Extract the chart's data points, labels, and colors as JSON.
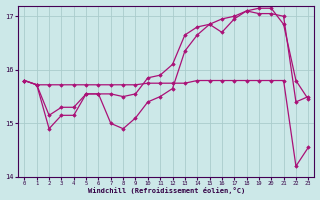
{
  "background_color": "#cce8e8",
  "grid_color": "#aacccc",
  "line_color": "#aa1177",
  "xlim": [
    -0.5,
    23.5
  ],
  "ylim": [
    14.0,
    17.2
  ],
  "yticks": [
    14,
    15,
    16,
    17
  ],
  "xticks": [
    0,
    1,
    2,
    3,
    4,
    5,
    6,
    7,
    8,
    9,
    10,
    11,
    12,
    13,
    14,
    15,
    16,
    17,
    18,
    19,
    20,
    21,
    22,
    23
  ],
  "xlabel": "Windchill (Refroidissement éolien,°C)",
  "series": [
    [
      15.8,
      15.72,
      15.72,
      15.72,
      15.72,
      15.72,
      15.72,
      15.72,
      15.72,
      15.72,
      15.75,
      15.75,
      15.75,
      15.75,
      15.8,
      15.8,
      15.8,
      15.8,
      15.8,
      15.8,
      15.8,
      15.8,
      14.2,
      14.55
    ],
    [
      15.8,
      15.72,
      14.9,
      15.15,
      15.15,
      15.55,
      15.55,
      15.0,
      14.9,
      15.1,
      15.4,
      15.5,
      15.65,
      16.35,
      16.65,
      16.85,
      16.7,
      16.95,
      17.1,
      17.05,
      17.05,
      17.0,
      15.4,
      15.5
    ],
    [
      15.8,
      15.72,
      15.15,
      15.3,
      15.3,
      15.55,
      15.55,
      15.55,
      15.5,
      15.55,
      15.85,
      15.9,
      16.1,
      16.65,
      16.8,
      16.85,
      16.95,
      17.0,
      17.1,
      17.15,
      17.15,
      16.85,
      15.8,
      15.45
    ]
  ]
}
